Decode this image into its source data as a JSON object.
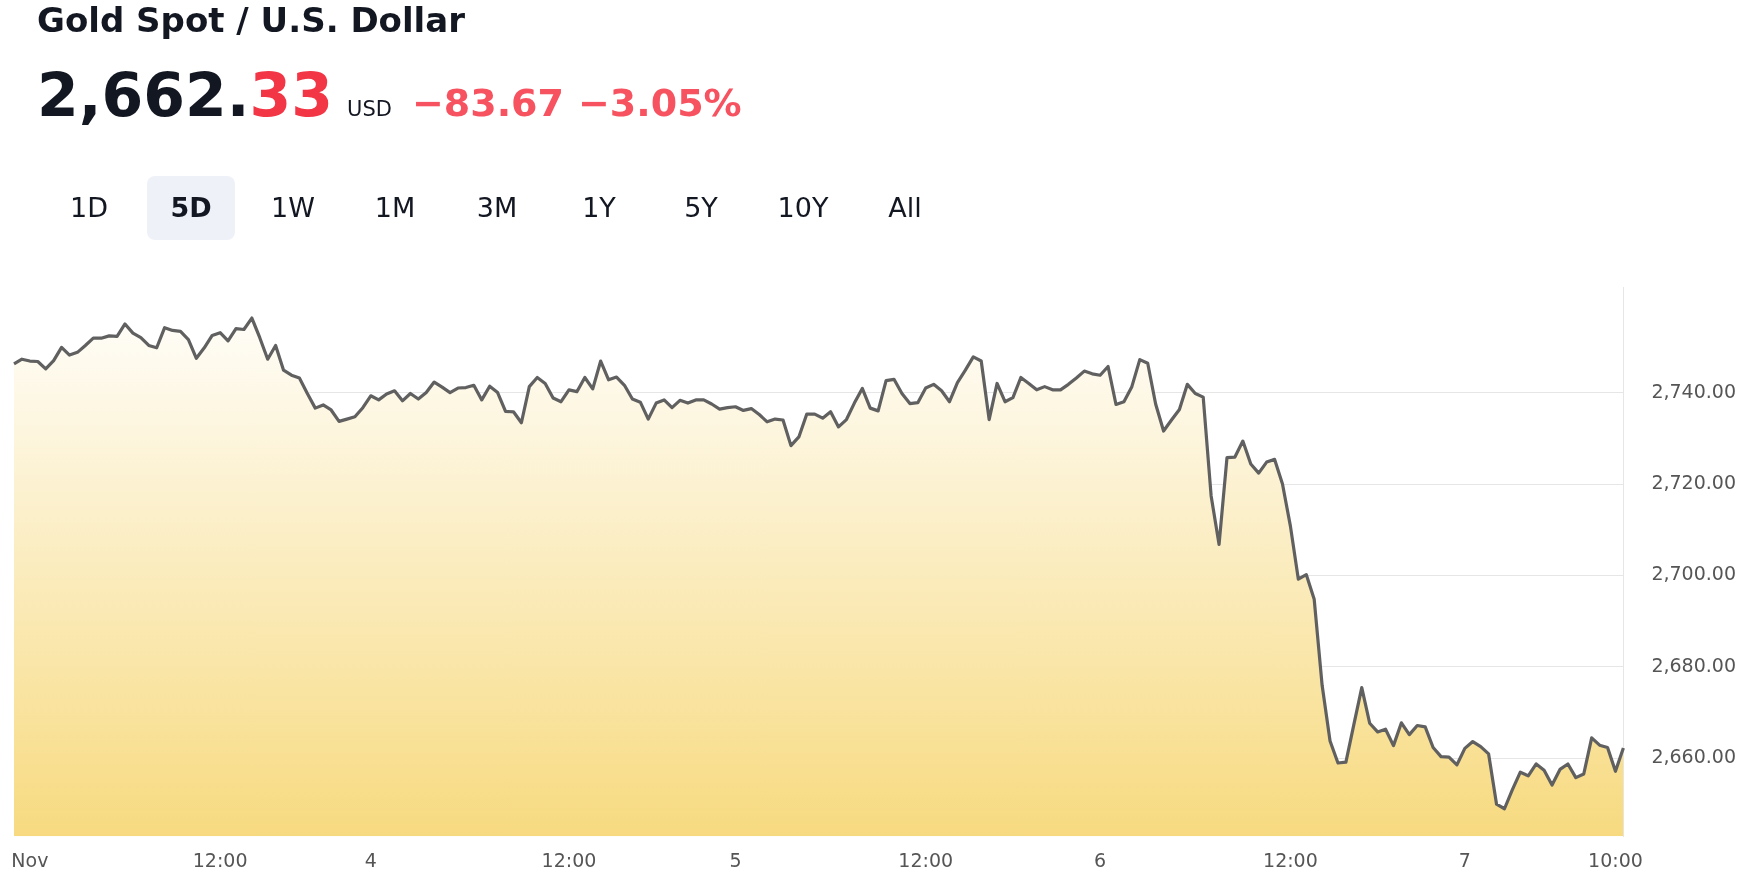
{
  "chart_data": {
    "type": "area",
    "title": "Gold Spot / U.S. Dollar",
    "annotations": [
      "2,662.33",
      "USD",
      "−83.67",
      "−3.05%",
      "1D",
      "5D",
      "1W",
      "1M",
      "3M",
      "1Y",
      "5Y",
      "10Y",
      "All"
    ],
    "categories": [
      null,
      null,
      "Nov",
      null,
      null,
      null,
      null,
      null,
      null,
      null,
      null,
      null,
      null,
      null,
      null,
      null,
      null,
      null,
      null,
      null,
      null,
      null,
      null,
      null,
      null,
      null,
      "12:00",
      null,
      null,
      null,
      null,
      null,
      null,
      null,
      null,
      null,
      null,
      null,
      null,
      null,
      null,
      null,
      null,
      null,
      null,
      "4",
      null,
      null,
      null,
      null,
      null,
      null,
      null,
      null,
      null,
      null,
      null,
      null,
      null,
      null,
      null,
      null,
      null,
      null,
      null,
      null,
      null,
      null,
      null,
      null,
      "12:00",
      null,
      null,
      null,
      null,
      null,
      null,
      null,
      null,
      null,
      null,
      null,
      null,
      null,
      null,
      null,
      null,
      null,
      null,
      null,
      null,
      "5",
      null,
      null,
      null,
      null,
      null,
      null,
      null,
      null,
      null,
      null,
      null,
      null,
      null,
      null,
      null,
      null,
      null,
      null,
      null,
      null,
      null,
      null,
      null,
      "12:00",
      null,
      null,
      null,
      null,
      null,
      null,
      null,
      null,
      null,
      null,
      null,
      null,
      null,
      null,
      null,
      null,
      null,
      null,
      null,
      null,
      null,
      "6",
      null,
      null,
      null,
      null,
      null,
      null,
      null,
      null,
      null,
      null,
      null,
      null,
      null,
      null,
      null,
      null,
      null,
      null,
      null,
      null,
      null,
      null,
      null,
      "12:00",
      null,
      null,
      null,
      null,
      null,
      null,
      null,
      null,
      null,
      null,
      null,
      null,
      null,
      null,
      null,
      null,
      null,
      null,
      null,
      null,
      null,
      "7",
      null,
      null,
      null,
      null,
      null,
      null,
      null,
      null,
      null,
      null,
      null,
      null,
      null,
      null,
      null,
      null,
      null,
      null,
      "10:00",
      null
    ],
    "values": [
      2746.3,
      2747.3,
      2746.9,
      2746.8,
      2745.2,
      2747.0,
      2749.9,
      2748.2,
      2748.8,
      2750.3,
      2751.9,
      2751.9,
      2752.4,
      2752.3,
      2755.0,
      2753.0,
      2752.0,
      2750.3,
      2749.8,
      2754.2,
      2753.6,
      2753.4,
      2751.6,
      2747.5,
      2749.8,
      2752.5,
      2753.1,
      2751.3,
      2754.0,
      2753.8,
      2756.3,
      2752.0,
      2747.3,
      2750.3,
      2744.9,
      2743.8,
      2743.2,
      2739.8,
      2736.6,
      2737.3,
      2736.2,
      2733.7,
      2734.2,
      2734.7,
      2736.7,
      2739.3,
      2738.4,
      2739.7,
      2740.4,
      2738.2,
      2739.8,
      2738.6,
      2740.0,
      2742.3,
      2741.2,
      2740.0,
      2741.0,
      2741.1,
      2741.6,
      2738.4,
      2741.4,
      2740.0,
      2735.9,
      2735.8,
      2733.4,
      2741.3,
      2743.3,
      2742.0,
      2738.8,
      2738.0,
      2740.6,
      2740.2,
      2743.3,
      2740.8,
      2746.9,
      2742.8,
      2743.4,
      2741.6,
      2738.6,
      2737.9,
      2734.2,
      2737.7,
      2738.4,
      2736.7,
      2738.3,
      2737.7,
      2738.4,
      2738.4,
      2737.5,
      2736.4,
      2736.7,
      2736.9,
      2736.1,
      2736.5,
      2735.2,
      2733.6,
      2734.2,
      2734.0,
      2728.4,
      2730.3,
      2735.3,
      2735.3,
      2734.4,
      2735.8,
      2732.5,
      2734.1,
      2737.7,
      2740.9,
      2736.6,
      2736.0,
      2742.6,
      2742.9,
      2739.8,
      2737.6,
      2737.8,
      2741.0,
      2741.8,
      2740.4,
      2738.0,
      2742.2,
      2744.9,
      2747.8,
      2746.9,
      2734.1,
      2742.0,
      2738.0,
      2738.9,
      2743.3,
      2742.0,
      2740.6,
      2741.3,
      2740.6,
      2740.6,
      2741.8,
      2743.2,
      2744.7,
      2744.1,
      2743.8,
      2745.7,
      2737.4,
      2738.0,
      2741.3,
      2747.2,
      2746.4,
      2737.5,
      2731.6,
      2734.0,
      2736.3,
      2741.8,
      2739.8,
      2739.0,
      2717.4,
      2706.8,
      2725.8,
      2725.9,
      2729.4,
      2724.4,
      2722.4,
      2724.8,
      2725.4,
      2720.0,
      2710.8,
      2699.2,
      2700.2,
      2694.8,
      2676.0,
      2663.8,
      2659.0,
      2659.2,
      2667.4,
      2675.5,
      2667.7,
      2665.8,
      2666.4,
      2662.8,
      2667.8,
      2665.2,
      2667.2,
      2666.9,
      2662.4,
      2660.4,
      2660.3,
      2658.6,
      2662.2,
      2663.7,
      2662.6,
      2661.0,
      2650.0,
      2649.0,
      2653.2,
      2657.0,
      2656.2,
      2658.8,
      2657.4,
      2654.2,
      2657.6,
      2658.8,
      2655.8,
      2656.6,
      2664.5,
      2662.9,
      2662.4,
      2657.2,
      2662.3
    ],
    "color": "#606060",
    "ylim": [
      2643,
      2763
    ],
    "yticks": [
      {
        "value": 2660,
        "label": "2,660.00"
      },
      {
        "value": 2680,
        "label": "2,680.00"
      },
      {
        "value": 2700,
        "label": "2,700.00"
      },
      {
        "value": 2720,
        "label": "2,720.00"
      },
      {
        "value": 2740,
        "label": "2,740.00"
      }
    ],
    "grid": "y",
    "legend": false,
    "marker": "none",
    "line_style": "solid"
  }
}
